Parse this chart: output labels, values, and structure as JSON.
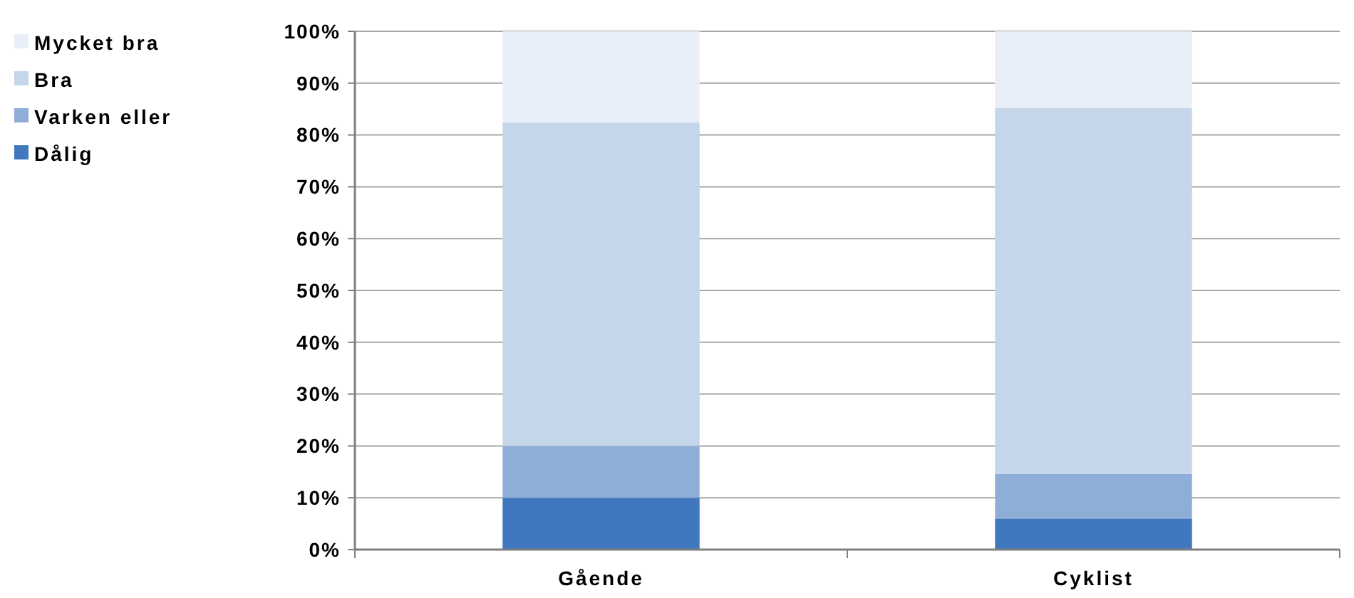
{
  "chart_data": {
    "type": "bar",
    "stacked": true,
    "categories": [
      "Gående",
      "Cyklist"
    ],
    "series": [
      {
        "name": "Dålig",
        "color": "#4177bc",
        "values": [
          10,
          6
        ]
      },
      {
        "name": "Varken eller",
        "color": "#8eaed8",
        "values": [
          10,
          8.6
        ]
      },
      {
        "name": "Bra",
        "color": "#c5d5ea",
        "values": [
          62.4,
          70.6
        ]
      },
      {
        "name": "Mycket bra",
        "color": "#e9eff8",
        "values": [
          17.6,
          14.8
        ]
      }
    ],
    "ylim": [
      0,
      100
    ],
    "yticks": [
      {
        "value": 0,
        "label": "0%"
      },
      {
        "value": 10,
        "label": "10%"
      },
      {
        "value": 20,
        "label": "20%"
      },
      {
        "value": 30,
        "label": "30%"
      },
      {
        "value": 40,
        "label": "40%"
      },
      {
        "value": 50,
        "label": "50%"
      },
      {
        "value": 60,
        "label": "60%"
      },
      {
        "value": 70,
        "label": "70%"
      },
      {
        "value": 80,
        "label": "80%"
      },
      {
        "value": 90,
        "label": "90%"
      },
      {
        "value": 100,
        "label": "100%"
      }
    ],
    "grid": "y",
    "legend": "top left"
  }
}
